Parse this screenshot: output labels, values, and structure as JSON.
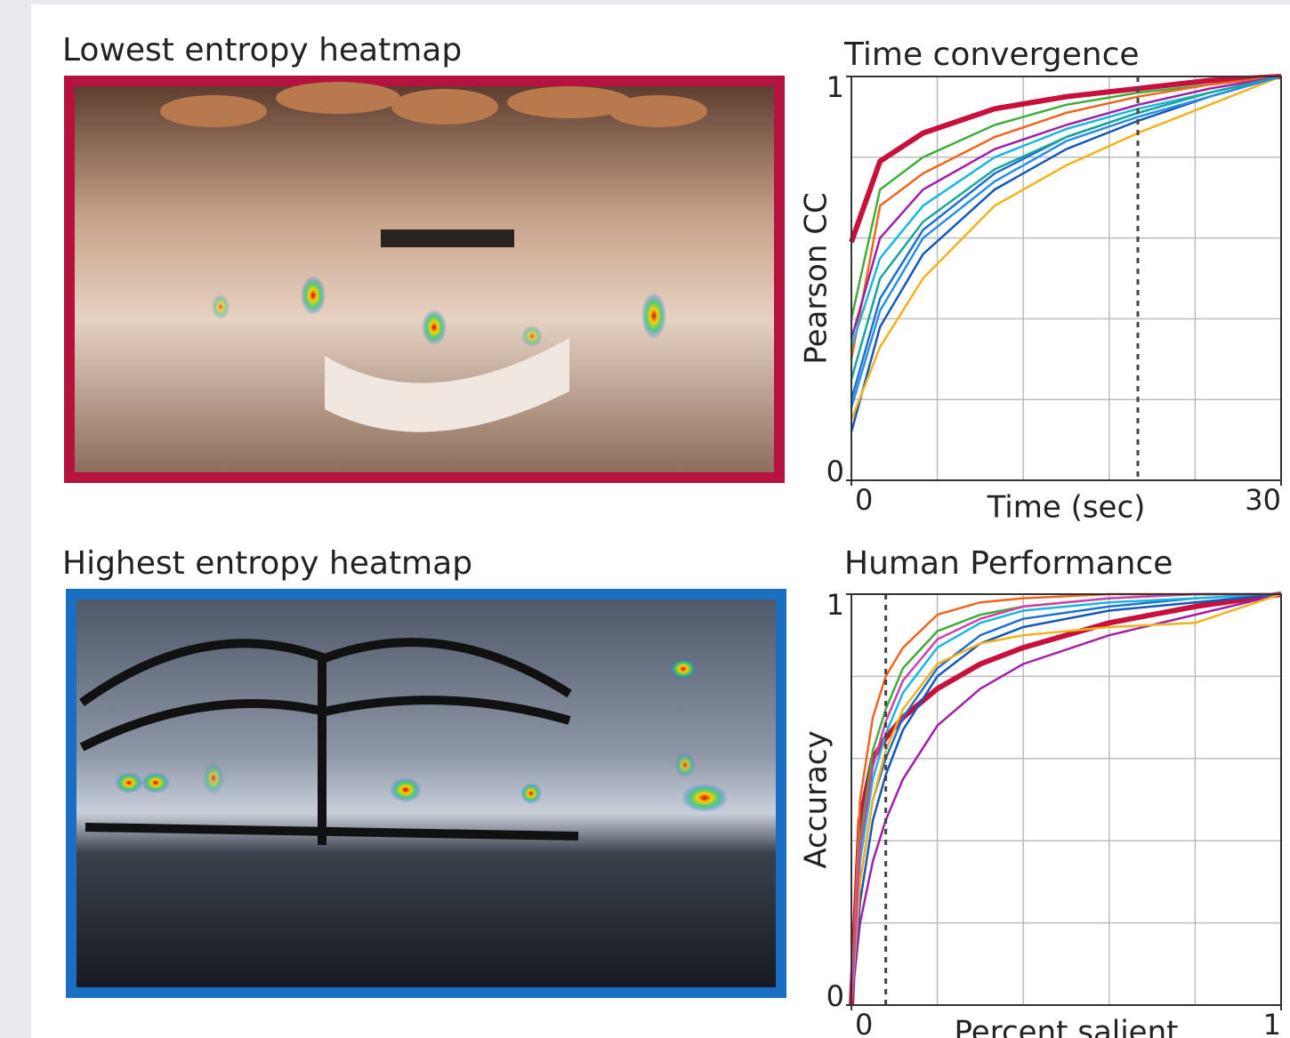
{
  "images": [
    {
      "title": "Lowest entropy heatmap"
    },
    {
      "title": "Highest entropy heatmap"
    }
  ],
  "chart_data": [
    {
      "type": "line",
      "title": "Time convergence",
      "x_label": "Time (sec)",
      "y_label": "Pearson CC",
      "xlim": [
        0,
        30
      ],
      "xticks": [
        0,
        30
      ],
      "xgrid": [
        6,
        12,
        18,
        24
      ],
      "ylim": [
        0,
        1
      ],
      "yticks": [
        0,
        1
      ],
      "ygrid": [
        0.2,
        0.4,
        0.6,
        0.8
      ],
      "vline": 20,
      "grid": true,
      "x": [
        0,
        2,
        5,
        10,
        15,
        20,
        25,
        30
      ],
      "series": [
        {
          "color": "#c8103c",
          "values": [
            0.59,
            0.79,
            0.86,
            0.92,
            0.95,
            0.97,
            0.99,
            1
          ]
        },
        {
          "color": "#3fae3a",
          "values": [
            0.4,
            0.72,
            0.8,
            0.88,
            0.93,
            0.96,
            0.98,
            1
          ]
        },
        {
          "color": "#f0651e",
          "values": [
            0.3,
            0.68,
            0.76,
            0.85,
            0.91,
            0.95,
            0.98,
            1
          ]
        },
        {
          "color": "#1f6fd1",
          "values": [
            0.2,
            0.45,
            0.62,
            0.76,
            0.85,
            0.91,
            0.96,
            1
          ]
        },
        {
          "color": "#17b8e0",
          "values": [
            0.33,
            0.55,
            0.68,
            0.8,
            0.87,
            0.92,
            0.96,
            1
          ]
        },
        {
          "color": "#1558b8",
          "values": [
            0.12,
            0.38,
            0.56,
            0.72,
            0.82,
            0.89,
            0.95,
            1
          ]
        },
        {
          "color": "#f2b21b",
          "values": [
            0.15,
            0.33,
            0.5,
            0.68,
            0.78,
            0.86,
            0.93,
            1
          ]
        },
        {
          "color": "#a020a8",
          "values": [
            0.35,
            0.6,
            0.72,
            0.82,
            0.88,
            0.93,
            0.97,
            1
          ]
        },
        {
          "color": "#1aa59a",
          "values": [
            0.25,
            0.5,
            0.64,
            0.77,
            0.85,
            0.91,
            0.96,
            1
          ]
        },
        {
          "color": "#2a8de8",
          "values": [
            0.18,
            0.42,
            0.6,
            0.74,
            0.84,
            0.9,
            0.95,
            1
          ]
        }
      ]
    },
    {
      "type": "line",
      "title": "Human Performance",
      "x_label": "Percent salient",
      "y_label": "Accuracy",
      "xlim": [
        0,
        1
      ],
      "xticks": [
        0,
        1
      ],
      "xgrid": [
        0.2,
        0.4,
        0.6,
        0.8
      ],
      "ylim": [
        0,
        1
      ],
      "yticks": [
        0,
        1
      ],
      "ygrid": [
        0.2,
        0.4,
        0.6,
        0.8
      ],
      "vline": 0.08,
      "grid": true,
      "x": [
        0,
        0.02,
        0.05,
        0.08,
        0.12,
        0.2,
        0.3,
        0.4,
        0.6,
        0.8,
        1
      ],
      "series": [
        {
          "color": "#c8103c",
          "values": [
            0,
            0.45,
            0.6,
            0.65,
            0.7,
            0.77,
            0.83,
            0.87,
            0.93,
            0.97,
            1
          ]
        },
        {
          "color": "#f0651e",
          "values": [
            0,
            0.5,
            0.7,
            0.8,
            0.87,
            0.95,
            0.98,
            0.99,
            1,
            1,
            1
          ]
        },
        {
          "color": "#a020a8",
          "values": [
            0,
            0.2,
            0.35,
            0.45,
            0.55,
            0.68,
            0.77,
            0.83,
            0.9,
            0.95,
            1
          ]
        },
        {
          "color": "#1f6fd1",
          "values": [
            0,
            0.3,
            0.5,
            0.6,
            0.7,
            0.82,
            0.9,
            0.94,
            0.97,
            0.99,
            1
          ]
        },
        {
          "color": "#17b8e0",
          "values": [
            0,
            0.35,
            0.55,
            0.66,
            0.76,
            0.87,
            0.93,
            0.96,
            0.98,
            0.99,
            1
          ]
        },
        {
          "color": "#3fae3a",
          "values": [
            0,
            0.4,
            0.62,
            0.72,
            0.82,
            0.91,
            0.95,
            0.97,
            0.99,
            1,
            1
          ]
        },
        {
          "color": "#1558b8",
          "values": [
            0,
            0.25,
            0.45,
            0.56,
            0.67,
            0.8,
            0.88,
            0.92,
            0.96,
            0.98,
            1
          ]
        },
        {
          "color": "#f2b21b",
          "values": [
            0,
            0.3,
            0.5,
            0.62,
            0.72,
            0.83,
            0.88,
            0.9,
            0.92,
            0.93,
            1
          ]
        },
        {
          "color": "#d43fb0",
          "values": [
            0,
            0.38,
            0.58,
            0.69,
            0.79,
            0.89,
            0.94,
            0.97,
            0.99,
            1,
            1
          ]
        }
      ]
    }
  ]
}
